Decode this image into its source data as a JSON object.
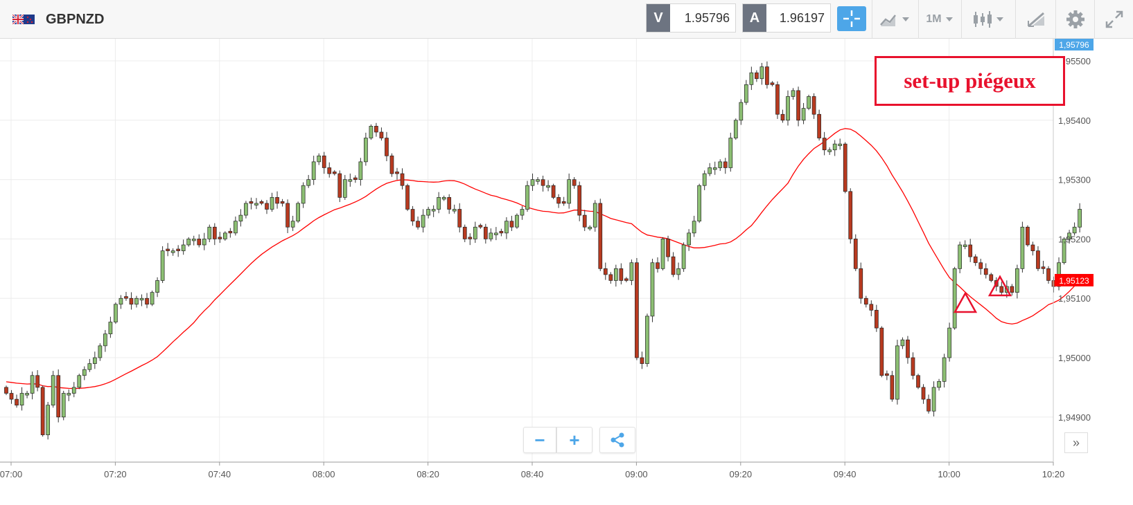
{
  "toolbar": {
    "flag_icon": "gb-nz-flag-icon",
    "symbol": "GBPNZD",
    "sell_tag": "V",
    "sell_price": "1.95796",
    "buy_tag": "A",
    "buy_price": "1.96197",
    "crosshair_icon": "crosshair-icon",
    "chart_type_icon": "line-chart-icon",
    "timeframe": "1M",
    "candles_icon": "candlestick-icon",
    "drawing_icon": "drawing-tools-icon",
    "settings_icon": "gear-icon",
    "fullscreen_icon": "expand-icon",
    "accent_color": "#4da6e8"
  },
  "annotation": {
    "text": "set-up piégeux",
    "color": "#e8112d"
  },
  "controls": {
    "zoom_out": "−",
    "zoom_in": "+",
    "share_icon": "share-icon",
    "panel_toggle": "»"
  },
  "chart_data": {
    "type": "candlestick",
    "timeframe": "1M",
    "xlabels": [
      "07:00",
      "07:20",
      "07:40",
      "08:00",
      "08:20",
      "08:40",
      "09:00",
      "09:20",
      "09:40",
      "10:00",
      "10:20"
    ],
    "yticks": [
      "1,95500",
      "1,95400",
      "1,95300",
      "1,95200",
      "1,95100",
      "1,95000",
      "1,94900"
    ],
    "ylim": [
      1.9484,
      1.9555
    ],
    "current_price_label": "1,95796",
    "current_price_color": "#4da6e8",
    "ma_price_label": "1,95123",
    "ma_price_color": "#ff0000",
    "up_color": "#8cbf73",
    "down_color": "#b83a20",
    "ma_color": "#ff0000",
    "grid": true,
    "markers": [
      {
        "shape": "triangle-outline",
        "time": "10:11",
        "price": 1.9508
      },
      {
        "shape": "triangle-outline",
        "time": "10:18",
        "price": 1.951
      }
    ],
    "candles_close": [
      1.9494,
      1.9493,
      1.9492,
      1.9494,
      1.9494,
      1.9497,
      1.9495,
      1.9487,
      1.9492,
      1.9497,
      1.949,
      1.9494,
      1.9494,
      1.9495,
      1.9497,
      1.9498,
      1.9499,
      1.95,
      1.9502,
      1.9504,
      1.9506,
      1.9509,
      1.951,
      1.951,
      1.9509,
      1.951,
      1.951,
      1.9509,
      1.9511,
      1.9513,
      1.9518,
      1.9518,
      1.9518,
      1.9518,
      1.9519,
      1.952,
      1.952,
      1.9519,
      1.952,
      1.9522,
      1.952,
      1.952,
      1.9521,
      1.9521,
      1.9523,
      1.9524,
      1.9526,
      1.9526,
      1.9526,
      1.9526,
      1.9525,
      1.9527,
      1.9526,
      1.9526,
      1.9522,
      1.9523,
      1.9526,
      1.9529,
      1.953,
      1.9533,
      1.9534,
      1.9532,
      1.9531,
      1.9531,
      1.9527,
      1.953,
      1.953,
      1.953,
      1.9533,
      1.9537,
      1.9539,
      1.9538,
      1.9537,
      1.9534,
      1.9531,
      1.9531,
      1.9529,
      1.9525,
      1.9523,
      1.9522,
      1.9524,
      1.9525,
      1.9525,
      1.9527,
      1.9527,
      1.9525,
      1.9525,
      1.9522,
      1.952,
      1.952,
      1.9522,
      1.9522,
      1.952,
      1.9521,
      1.9521,
      1.9521,
      1.9523,
      1.9522,
      1.9524,
      1.9525,
      1.9529,
      1.953,
      1.953,
      1.9529,
      1.9529,
      1.9527,
      1.9526,
      1.9526,
      1.953,
      1.9529,
      1.9524,
      1.9522,
      1.9522,
      1.9526,
      1.9515,
      1.9514,
      1.9513,
      1.9515,
      1.9513,
      1.9513,
      1.9516,
      1.95,
      1.9499,
      1.9507,
      1.9516,
      1.9515,
      1.952,
      1.9517,
      1.9514,
      1.9515,
      1.9519,
      1.9521,
      1.9523,
      1.9529,
      1.9531,
      1.9532,
      1.9532,
      1.9533,
      1.9532,
      1.9537,
      1.954,
      1.9543,
      1.9546,
      1.9548,
      1.9547,
      1.9549,
      1.9546,
      1.9546,
      1.9541,
      1.954,
      1.9544,
      1.9545,
      1.954,
      1.9542,
      1.9544,
      1.9541,
      1.9537,
      1.9535,
      1.9535,
      1.9536,
      1.9536,
      1.9528,
      1.952,
      1.9515,
      1.951,
      1.9509,
      1.9508,
      1.9505,
      1.9497,
      1.9497,
      1.9493,
      1.9502,
      1.9503,
      1.95,
      1.9497,
      1.9495,
      1.9493,
      1.9491,
      1.9495,
      1.9496,
      1.95,
      1.9505,
      1.9515,
      1.9519,
      1.9519,
      1.9517,
      1.9516,
      1.9515,
      1.9514,
      1.9513,
      1.9512,
      1.9511,
      1.9512,
      1.9511,
      1.9515,
      1.9522,
      1.9519,
      1.9518,
      1.9515,
      1.9515,
      1.9513,
      1.9512,
      1.9516,
      1.952,
      1.9521,
      1.9522,
      1.9525
    ]
  }
}
